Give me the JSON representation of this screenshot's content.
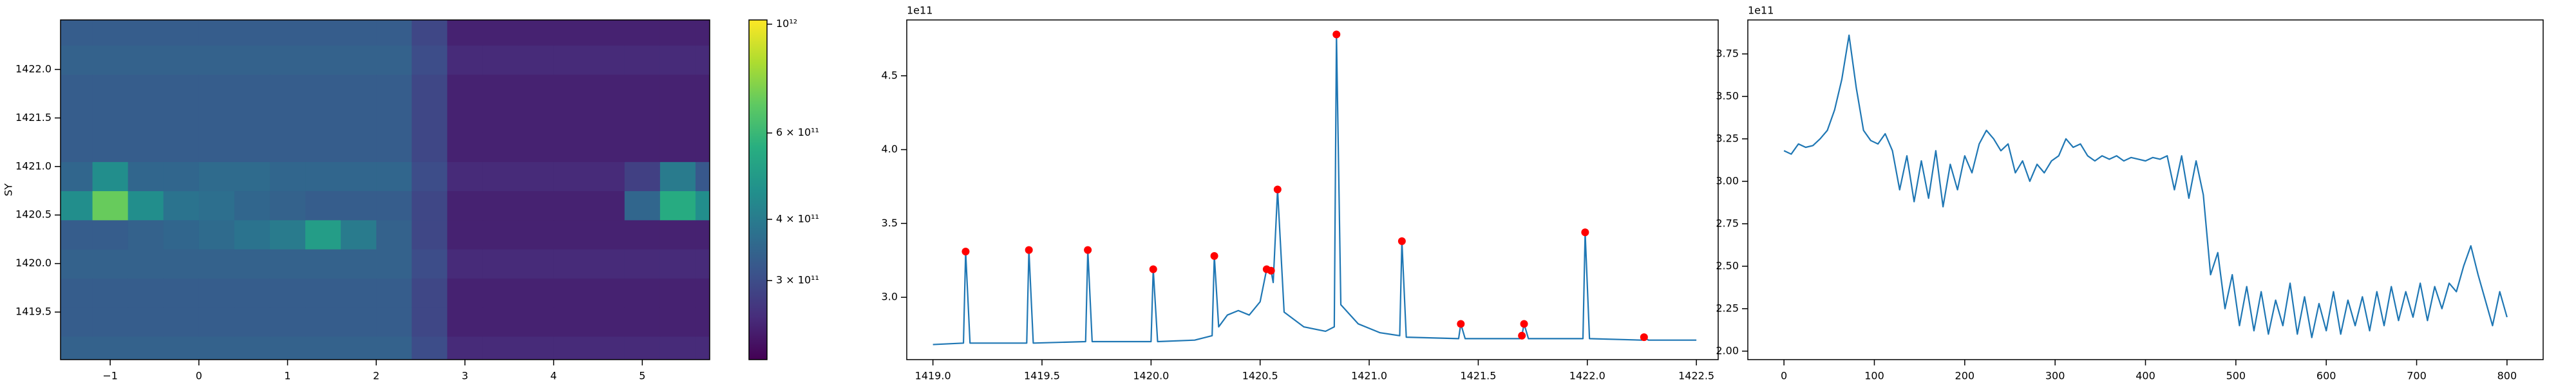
{
  "chart_data": [
    {
      "type": "heatmap",
      "ylabel": "SY",
      "colormap": "viridis",
      "x": [
        -1.4,
        -1.0,
        -0.6,
        -0.2,
        0.2,
        0.6,
        1.0,
        1.4,
        1.8,
        2.2,
        2.6,
        3.0,
        3.4,
        3.8,
        4.2,
        4.6,
        5.0,
        5.4,
        5.8
      ],
      "y": [
        1419.1,
        1419.4,
        1419.7,
        1420.0,
        1420.3,
        1420.6,
        1420.9,
        1421.2,
        1421.5,
        1421.8,
        1422.1,
        1422.4
      ],
      "values": [
        [
          340000000000.0,
          340000000000.0,
          340000000000.0,
          340000000000.0,
          340000000000.0,
          340000000000.0,
          340000000000.0,
          340000000000.0,
          340000000000.0,
          340000000000.0,
          300000000000.0,
          250000000000.0,
          250000000000.0,
          250000000000.0,
          250000000000.0,
          250000000000.0,
          250000000000.0,
          250000000000.0,
          250000000000.0
        ],
        [
          330000000000.0,
          330000000000.0,
          330000000000.0,
          330000000000.0,
          330000000000.0,
          330000000000.0,
          330000000000.0,
          330000000000.0,
          330000000000.0,
          330000000000.0,
          290000000000.0,
          240000000000.0,
          240000000000.0,
          240000000000.0,
          240000000000.0,
          240000000000.0,
          240000000000.0,
          240000000000.0,
          240000000000.0
        ],
        [
          330000000000.0,
          330000000000.0,
          330000000000.0,
          330000000000.0,
          330000000000.0,
          330000000000.0,
          330000000000.0,
          330000000000.0,
          330000000000.0,
          330000000000.0,
          290000000000.0,
          240000000000.0,
          240000000000.0,
          240000000000.0,
          240000000000.0,
          240000000000.0,
          240000000000.0,
          240000000000.0,
          240000000000.0
        ],
        [
          340000000000.0,
          340000000000.0,
          340000000000.0,
          340000000000.0,
          340000000000.0,
          340000000000.0,
          340000000000.0,
          340000000000.0,
          340000000000.0,
          340000000000.0,
          300000000000.0,
          250000000000.0,
          250000000000.0,
          250000000000.0,
          250000000000.0,
          250000000000.0,
          250000000000.0,
          250000000000.0,
          250000000000.0
        ],
        [
          330000000000.0,
          330000000000.0,
          340000000000.0,
          350000000000.0,
          360000000000.0,
          380000000000.0,
          400000000000.0,
          500000000000.0,
          400000000000.0,
          340000000000.0,
          290000000000.0,
          240000000000.0,
          240000000000.0,
          240000000000.0,
          240000000000.0,
          240000000000.0,
          240000000000.0,
          240000000000.0,
          240000000000.0
        ],
        [
          450000000000.0,
          700000000000.0,
          450000000000.0,
          380000000000.0,
          370000000000.0,
          350000000000.0,
          340000000000.0,
          330000000000.0,
          330000000000.0,
          330000000000.0,
          290000000000.0,
          240000000000.0,
          240000000000.0,
          240000000000.0,
          240000000000.0,
          240000000000.0,
          350000000000.0,
          550000000000.0,
          450000000000.0
        ],
        [
          350000000000.0,
          450000000000.0,
          350000000000.0,
          350000000000.0,
          360000000000.0,
          360000000000.0,
          350000000000.0,
          350000000000.0,
          350000000000.0,
          350000000000.0,
          300000000000.0,
          250000000000.0,
          250000000000.0,
          250000000000.0,
          250000000000.0,
          250000000000.0,
          280000000000.0,
          400000000000.0,
          320000000000.0
        ],
        [
          330000000000.0,
          330000000000.0,
          330000000000.0,
          330000000000.0,
          330000000000.0,
          330000000000.0,
          330000000000.0,
          330000000000.0,
          330000000000.0,
          330000000000.0,
          290000000000.0,
          240000000000.0,
          240000000000.0,
          240000000000.0,
          240000000000.0,
          240000000000.0,
          240000000000.0,
          240000000000.0,
          240000000000.0
        ],
        [
          330000000000.0,
          330000000000.0,
          330000000000.0,
          330000000000.0,
          330000000000.0,
          330000000000.0,
          330000000000.0,
          330000000000.0,
          330000000000.0,
          330000000000.0,
          290000000000.0,
          240000000000.0,
          240000000000.0,
          240000000000.0,
          240000000000.0,
          240000000000.0,
          240000000000.0,
          240000000000.0,
          240000000000.0
        ],
        [
          330000000000.0,
          330000000000.0,
          330000000000.0,
          330000000000.0,
          330000000000.0,
          330000000000.0,
          330000000000.0,
          330000000000.0,
          330000000000.0,
          330000000000.0,
          290000000000.0,
          240000000000.0,
          240000000000.0,
          240000000000.0,
          240000000000.0,
          240000000000.0,
          240000000000.0,
          240000000000.0,
          240000000000.0
        ],
        [
          340000000000.0,
          340000000000.0,
          340000000000.0,
          340000000000.0,
          340000000000.0,
          340000000000.0,
          340000000000.0,
          340000000000.0,
          340000000000.0,
          340000000000.0,
          300000000000.0,
          250000000000.0,
          250000000000.0,
          250000000000.0,
          250000000000.0,
          250000000000.0,
          250000000000.0,
          250000000000.0,
          250000000000.0
        ],
        [
          330000000000.0,
          330000000000.0,
          330000000000.0,
          330000000000.0,
          330000000000.0,
          330000000000.0,
          330000000000.0,
          330000000000.0,
          330000000000.0,
          330000000000.0,
          290000000000.0,
          240000000000.0,
          240000000000.0,
          240000000000.0,
          240000000000.0,
          240000000000.0,
          240000000000.0,
          240000000000.0,
          240000000000.0
        ]
      ],
      "xlim": [
        -1.56,
        5.76
      ],
      "ylim": [
        1419.01,
        1422.51
      ],
      "xticks": [
        {
          "value": -1,
          "label": "−1"
        },
        0,
        1,
        2,
        3,
        4,
        5
      ],
      "yticks": [
        1419.5,
        {
          "value": 1420,
          "label": "1420.0"
        },
        1420.5,
        {
          "value": 1421,
          "label": "1421.0"
        },
        1421.5,
        {
          "value": 1422,
          "label": "1422.0"
        }
      ],
      "colorbar": {
        "scale": "log",
        "clim": [
          207000000000.0,
          1020000000000.0
        ],
        "ticks": [
          {
            "value": 300000000000.0,
            "label": "3 × 10¹¹"
          },
          {
            "value": 400000000000.0,
            "label": "4 × 10¹¹"
          },
          {
            "value": 600000000000.0,
            "label": "6 × 10¹¹"
          },
          {
            "value": 1000000000000.0,
            "label": "10¹²"
          }
        ]
      }
    },
    {
      "type": "line",
      "offset_label": "1e11",
      "xlim": [
        1418.88,
        1422.6
      ],
      "ylim": [
        2.578,
        4.878
      ],
      "xticks": [
        {
          "value": 1419,
          "label": "1419.0"
        },
        1419.5,
        {
          "value": 1420,
          "label": "1420.0"
        },
        1420.5,
        {
          "value": 1421,
          "label": "1421.0"
        },
        1421.5,
        {
          "value": 1422,
          "label": "1422.0"
        },
        1422.5
      ],
      "yticks": [
        {
          "value": 3,
          "label": "3.0"
        },
        3.5,
        {
          "value": 4,
          "label": "4.0"
        },
        4.5
      ],
      "series": [
        {
          "style": "line",
          "color": "#1f77b4",
          "x": [
            1419.0,
            1419.14,
            1419.15,
            1419.17,
            1419.43,
            1419.44,
            1419.46,
            1419.7,
            1419.71,
            1419.73,
            1420.0,
            1420.01,
            1420.03,
            1420.2,
            1420.28,
            1420.29,
            1420.31,
            1420.35,
            1420.4,
            1420.45,
            1420.5,
            1420.53,
            1420.55,
            1420.56,
            1420.58,
            1420.61,
            1420.7,
            1420.8,
            1420.84,
            1420.85,
            1420.87,
            1420.95,
            1421.05,
            1421.14,
            1421.15,
            1421.17,
            1421.41,
            1421.42,
            1421.44,
            1421.69,
            1421.7,
            1421.71,
            1421.73,
            1421.98,
            1421.99,
            1422.01,
            1422.25,
            1422.26,
            1422.28,
            1422.5
          ],
          "values": [
            2.68,
            2.69,
            3.31,
            2.69,
            2.69,
            3.32,
            2.69,
            2.7,
            3.32,
            2.7,
            2.7,
            3.19,
            2.7,
            2.71,
            2.74,
            3.28,
            2.8,
            2.88,
            2.91,
            2.88,
            2.97,
            3.19,
            3.18,
            3.1,
            3.73,
            2.9,
            2.8,
            2.77,
            2.8,
            4.78,
            2.95,
            2.82,
            2.76,
            2.74,
            3.38,
            2.73,
            2.72,
            2.82,
            2.72,
            2.72,
            2.74,
            2.82,
            2.72,
            2.72,
            3.44,
            2.72,
            2.71,
            2.73,
            2.71,
            2.71
          ]
        },
        {
          "style": "points",
          "color": "#ff0000",
          "x": [
            1419.15,
            1419.44,
            1419.71,
            1420.01,
            1420.29,
            1420.53,
            1420.55,
            1420.58,
            1420.85,
            1421.15,
            1421.42,
            1421.7,
            1421.71,
            1421.99,
            1422.26
          ],
          "values": [
            3.31,
            3.32,
            3.32,
            3.19,
            3.28,
            3.19,
            3.18,
            3.73,
            4.78,
            3.38,
            2.82,
            2.74,
            2.82,
            3.44,
            2.73
          ]
        }
      ]
    },
    {
      "type": "line",
      "offset_label": "1e11",
      "xlim": [
        -40,
        840
      ],
      "ylim": [
        1.95,
        3.95
      ],
      "xticks": [
        0,
        100,
        200,
        300,
        400,
        500,
        600,
        700,
        800
      ],
      "yticks": [
        {
          "value": 2,
          "label": "2.00"
        },
        2.25,
        {
          "value": 2.5,
          "label": "2.50"
        },
        2.75,
        {
          "value": 3,
          "label": "3.00"
        },
        3.25,
        {
          "value": 3.5,
          "label": "3.50"
        },
        3.75
      ],
      "series": [
        {
          "style": "line",
          "color": "#1f77b4",
          "x": [
            0,
            8,
            16,
            24,
            32,
            40,
            48,
            56,
            64,
            72,
            80,
            88,
            96,
            104,
            112,
            120,
            128,
            136,
            144,
            152,
            160,
            168,
            176,
            184,
            192,
            200,
            208,
            216,
            224,
            232,
            240,
            248,
            256,
            264,
            272,
            280,
            288,
            296,
            304,
            312,
            320,
            328,
            336,
            344,
            352,
            360,
            368,
            376,
            384,
            392,
            400,
            408,
            416,
            424,
            432,
            440,
            448,
            456,
            464,
            472,
            480,
            488,
            496,
            504,
            512,
            520,
            528,
            536,
            544,
            552,
            560,
            568,
            576,
            584,
            592,
            600,
            608,
            616,
            624,
            632,
            640,
            648,
            656,
            664,
            672,
            680,
            688,
            696,
            704,
            712,
            720,
            728,
            736,
            744,
            752,
            760,
            768,
            776,
            784,
            792,
            800
          ],
          "values": [
            3.18,
            3.16,
            3.22,
            3.2,
            3.21,
            3.25,
            3.3,
            3.42,
            3.6,
            3.86,
            3.55,
            3.3,
            3.24,
            3.22,
            3.28,
            3.18,
            2.95,
            3.15,
            2.88,
            3.12,
            2.9,
            3.18,
            2.85,
            3.1,
            2.95,
            3.15,
            3.05,
            3.22,
            3.3,
            3.25,
            3.18,
            3.22,
            3.05,
            3.12,
            3.0,
            3.1,
            3.05,
            3.12,
            3.15,
            3.25,
            3.2,
            3.22,
            3.15,
            3.12,
            3.15,
            3.13,
            3.15,
            3.12,
            3.14,
            3.13,
            3.12,
            3.14,
            3.13,
            3.15,
            2.95,
            3.15,
            2.9,
            3.12,
            2.92,
            2.45,
            2.58,
            2.25,
            2.45,
            2.15,
            2.38,
            2.12,
            2.35,
            2.1,
            2.3,
            2.15,
            2.4,
            2.1,
            2.32,
            2.08,
            2.28,
            2.12,
            2.35,
            2.1,
            2.3,
            2.15,
            2.32,
            2.12,
            2.35,
            2.15,
            2.38,
            2.18,
            2.35,
            2.2,
            2.4,
            2.18,
            2.38,
            2.25,
            2.4,
            2.35,
            2.5,
            2.62,
            2.45,
            2.3,
            2.15,
            2.35,
            2.2
          ]
        }
      ]
    }
  ]
}
